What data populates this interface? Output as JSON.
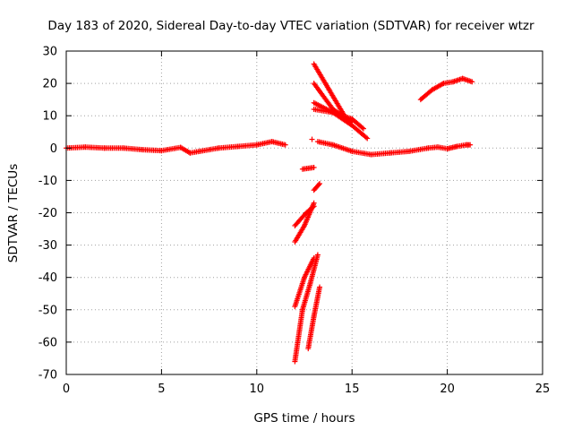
{
  "chart_data": {
    "type": "scatter",
    "title": "Day 183 of 2020, Sidereal Day-to-day VTEC variation (SDTVAR) for receiver wtzr",
    "xlabel": "GPS time / hours",
    "ylabel": "SDTVAR / TECUs",
    "xlim": [
      0,
      25
    ],
    "ylim": [
      -70,
      30
    ],
    "x_ticks": [
      0,
      5,
      10,
      15,
      20,
      25
    ],
    "y_ticks": [
      30,
      20,
      10,
      0,
      -10,
      -20,
      -30,
      -40,
      -50,
      -60,
      -70
    ],
    "grid": true,
    "grid_style": "dotted",
    "marker": "+",
    "series_color": "#ff0000",
    "series": [
      {
        "segments": [
          [
            [
              0,
              0
            ],
            [
              1,
              0.3
            ],
            [
              2,
              0
            ],
            [
              3,
              0
            ],
            [
              4,
              -0.5
            ],
            [
              5,
              -0.8
            ],
            [
              6,
              0.2
            ],
            [
              6.5,
              -1.5
            ],
            [
              7,
              -1
            ],
            [
              8,
              0
            ],
            [
              9,
              0.5
            ],
            [
              10,
              1
            ],
            [
              10.8,
              2
            ],
            [
              11.5,
              1
            ]
          ],
          [
            [
              12,
              -66
            ],
            [
              12.4,
              -50
            ],
            [
              12.8,
              -42
            ],
            [
              13.2,
              -33
            ]
          ],
          [
            [
              12.7,
              -62
            ],
            [
              13.0,
              -52
            ],
            [
              13.3,
              -43
            ]
          ],
          [
            [
              12,
              -49
            ],
            [
              12.5,
              -40
            ],
            [
              13,
              -34
            ]
          ],
          [
            [
              12,
              -29
            ],
            [
              12.5,
              -24
            ],
            [
              13,
              -17
            ]
          ],
          [
            [
              12,
              -24
            ],
            [
              12.6,
              -20
            ],
            [
              13,
              -18
            ]
          ],
          [
            [
              12.4,
              -6.5
            ],
            [
              13,
              -6
            ]
          ],
          [
            [
              13,
              -13
            ],
            [
              13.3,
              -11
            ]
          ],
          [
            [
              13,
              26
            ],
            [
              13.8,
              18
            ],
            [
              14.6,
              10
            ]
          ],
          [
            [
              13,
              20
            ],
            [
              14,
              12
            ],
            [
              15,
              8
            ]
          ],
          [
            [
              13,
              14
            ],
            [
              14,
              11
            ],
            [
              15,
              7
            ],
            [
              15.8,
              3
            ]
          ],
          [
            [
              13,
              12
            ],
            [
              14,
              11
            ],
            [
              15,
              9
            ],
            [
              15.6,
              6
            ]
          ],
          [
            [
              13.2,
              2
            ],
            [
              14,
              1
            ],
            [
              15,
              -1
            ],
            [
              16,
              -2
            ],
            [
              17,
              -1.5
            ],
            [
              18,
              -1
            ],
            [
              19,
              0
            ],
            [
              19.5,
              0.3
            ],
            [
              20,
              -0.2
            ],
            [
              20.5,
              0.5
            ],
            [
              21,
              1
            ],
            [
              21.2,
              1
            ]
          ],
          [
            [
              18.6,
              15
            ],
            [
              19.2,
              18
            ],
            [
              19.8,
              20
            ],
            [
              20.3,
              20.5
            ],
            [
              20.8,
              21.5
            ],
            [
              21.3,
              20.5
            ]
          ]
        ],
        "points": [
          [
            12.9,
            2.7
          ]
        ]
      }
    ]
  }
}
